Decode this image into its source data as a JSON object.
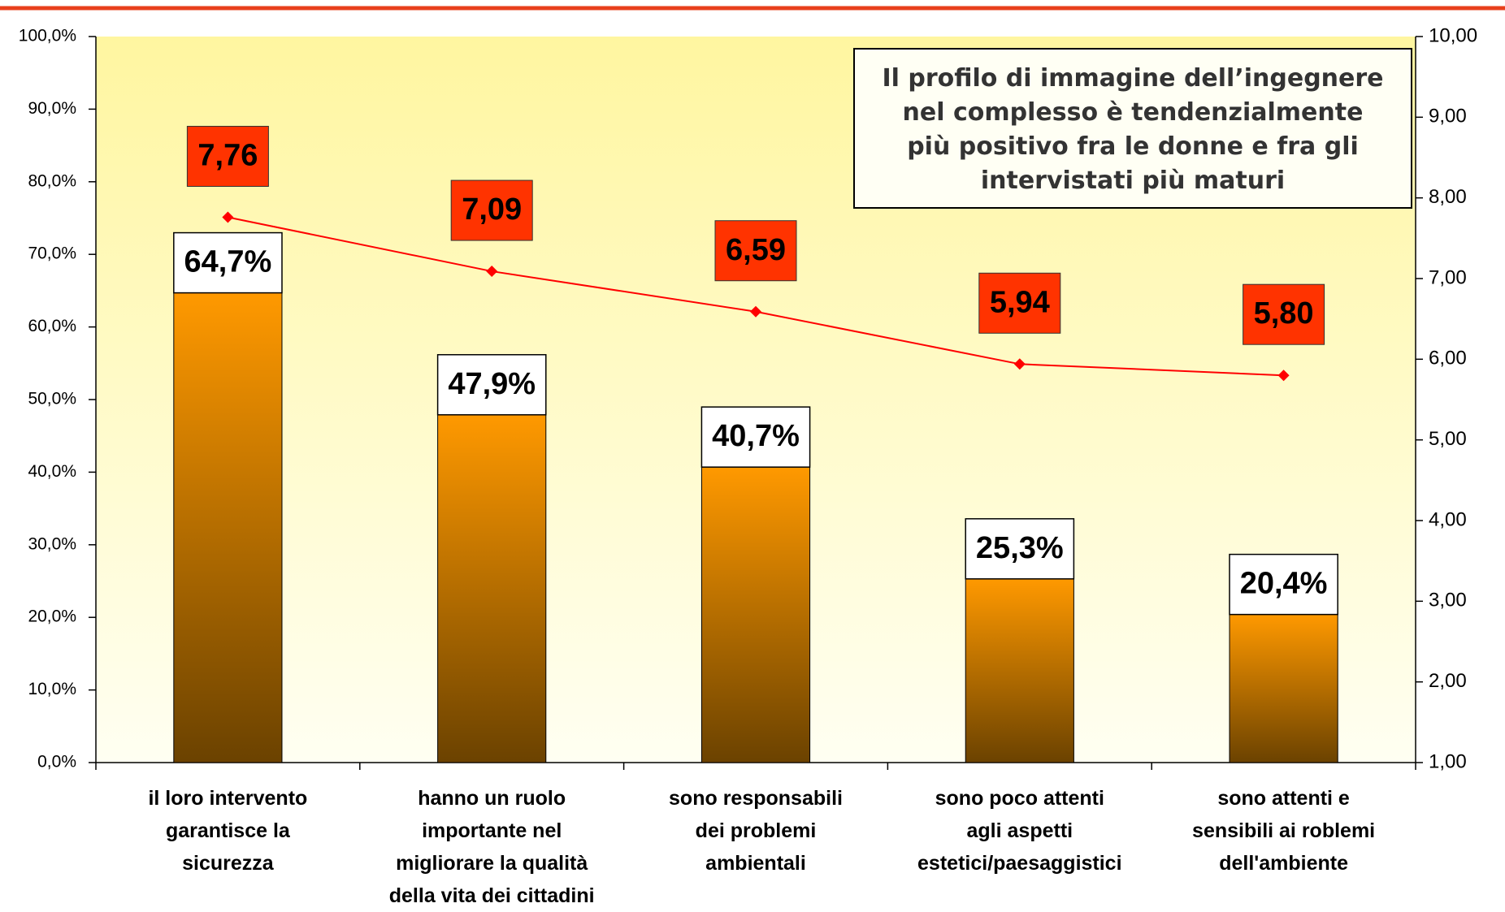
{
  "chart_data": {
    "type": "bar",
    "categories": [
      "il loro intervento\ngarantisce la\nsicurezza",
      "hanno un ruolo\nimportante nel\nmigliorare la qualità\ndella vita dei cittadini",
      "sono responsabili\ndei problemi\nambientali",
      "sono poco attenti\nagli aspetti\nestetici/paesaggistici",
      "sono attenti e\nsensibili ai roblemi\ndell'ambiente"
    ],
    "series": [
      {
        "type": "bar",
        "color": "#ff9900",
        "values": [
          64.7,
          47.9,
          40.7,
          25.3,
          20.4
        ],
        "value_labels": [
          "64,7%",
          "47,9%",
          "40,7%",
          "25,3%",
          "20,4%"
        ]
      },
      {
        "type": "line",
        "axis": "y2",
        "color": "#ff0000",
        "values": [
          7.76,
          7.09,
          6.59,
          5.94,
          5.8
        ],
        "value_labels": [
          "7,76",
          "7,09",
          "6,59",
          "5,94",
          "5,80"
        ]
      }
    ],
    "ylim": [
      0,
      100
    ],
    "yticks": [
      {
        "value": 0,
        "label": "0,0%"
      },
      {
        "value": 10,
        "label": "10,0%"
      },
      {
        "value": 20,
        "label": "20,0%"
      },
      {
        "value": 30,
        "label": "30,0%"
      },
      {
        "value": 40,
        "label": "40,0%"
      },
      {
        "value": 50,
        "label": "50,0%"
      },
      {
        "value": 60,
        "label": "60,0%"
      },
      {
        "value": 70,
        "label": "70,0%"
      },
      {
        "value": 80,
        "label": "80,0%"
      },
      {
        "value": 90,
        "label": "90,0%"
      },
      {
        "value": 100,
        "label": "100,0%"
      }
    ],
    "y2lim": [
      1,
      10
    ],
    "y2ticks": [
      {
        "value": 1,
        "label": "1,00"
      },
      {
        "value": 2,
        "label": "2,00"
      },
      {
        "value": 3,
        "label": "3,00"
      },
      {
        "value": 4,
        "label": "4,00"
      },
      {
        "value": 5,
        "label": "5,00"
      },
      {
        "value": 6,
        "label": "6,00"
      },
      {
        "value": 7,
        "label": "7,00"
      },
      {
        "value": 8,
        "label": "8,00"
      },
      {
        "value": 9,
        "label": "9,00"
      },
      {
        "value": 10,
        "label": "10,00"
      }
    ],
    "annotation": "Il profilo di immagine dell’ingegnere\nnel complesso è tendenzialmente\npiù positivo  fra le donne e fra gli\nintervistati più maturi"
  }
}
